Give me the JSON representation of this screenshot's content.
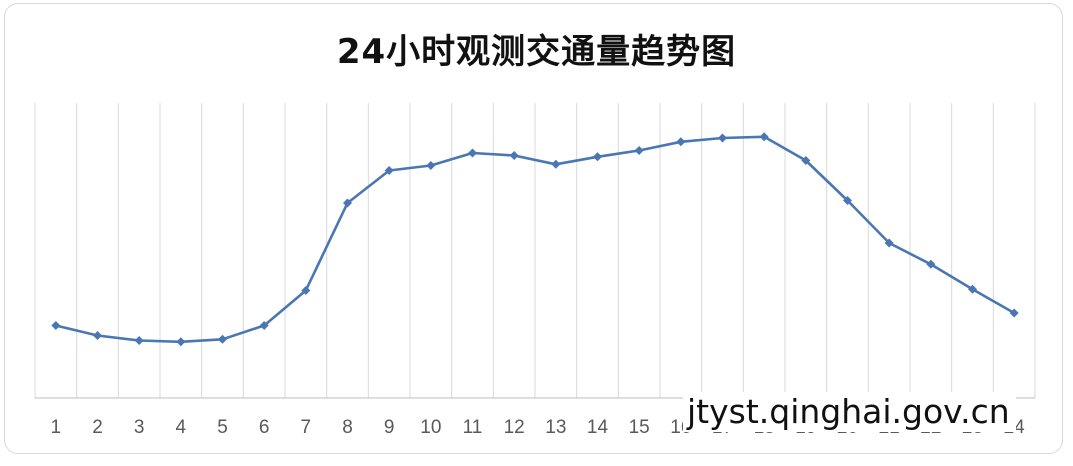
{
  "chart_data": {
    "type": "line",
    "title": "24小时观测交通量趋势图",
    "xlabel": "",
    "ylabel": "",
    "categories": [
      "1",
      "2",
      "3",
      "4",
      "5",
      "6",
      "7",
      "8",
      "9",
      "10",
      "11",
      "12",
      "13",
      "14",
      "15",
      "16",
      "17",
      "18",
      "19",
      "20",
      "21",
      "22",
      "23",
      "24"
    ],
    "series": [
      {
        "values": [
          16,
          12,
          10,
          9.5,
          10.5,
          16,
          30,
          65,
          78,
          80,
          85,
          84,
          80.5,
          83.5,
          86,
          89.5,
          91,
          91.5,
          82,
          66,
          49,
          40.5,
          30.5,
          21
        ]
      }
    ],
    "ylim": [
      -13,
      105
    ],
    "grid": "vertical",
    "legend": "none",
    "colors": {
      "line": "#4a77b4",
      "grid": "#d9d9d9",
      "axis": "#bfbfbf"
    }
  },
  "watermark": "jtyst.qinghai.gov.cn"
}
